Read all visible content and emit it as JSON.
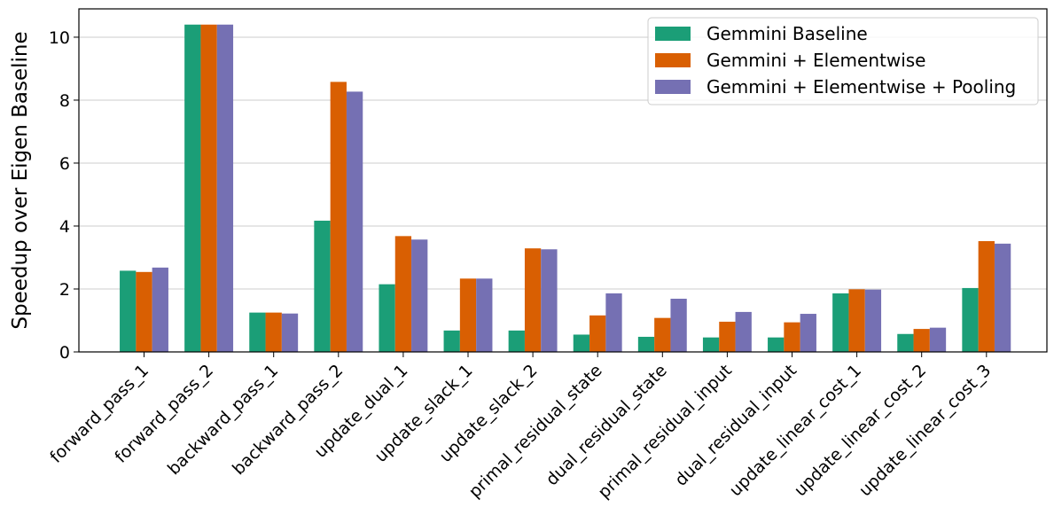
{
  "chart_data": {
    "type": "bar",
    "title": "",
    "xlabel": "",
    "ylabel": "Speedup over Eigen Baseline",
    "ylim": [
      0,
      10.9
    ],
    "yticks": [
      0,
      2,
      4,
      6,
      8,
      10
    ],
    "grid": "horizontal",
    "legend_position": "top-right",
    "categories": [
      "forward_pass_1",
      "forward_pass_2",
      "backward_pass_1",
      "backward_pass_2",
      "update_dual_1",
      "update_slack_1",
      "update_slack_2",
      "primal_residual_state",
      "dual_residual_state",
      "primal_residual_input",
      "dual_residual_input",
      "update_linear_cost_1",
      "update_linear_cost_2",
      "update_linear_cost_3"
    ],
    "series": [
      {
        "name": "Gemmini Baseline",
        "color": "#1b9e77",
        "values": [
          2.58,
          10.4,
          1.25,
          4.17,
          2.15,
          0.68,
          0.68,
          0.55,
          0.48,
          0.46,
          0.46,
          1.86,
          0.57,
          2.03
        ]
      },
      {
        "name": "Gemmini + Elementwise",
        "color": "#d95f02",
        "values": [
          2.54,
          10.4,
          1.25,
          8.58,
          3.68,
          2.33,
          3.29,
          1.16,
          1.08,
          0.96,
          0.94,
          1.99,
          0.73,
          3.52
        ]
      },
      {
        "name": "Gemmini + Elementwise + Pooling",
        "color": "#7570b3",
        "values": [
          2.68,
          10.4,
          1.22,
          8.27,
          3.57,
          2.33,
          3.26,
          1.86,
          1.69,
          1.27,
          1.21,
          1.98,
          0.77,
          3.44
        ]
      }
    ]
  }
}
